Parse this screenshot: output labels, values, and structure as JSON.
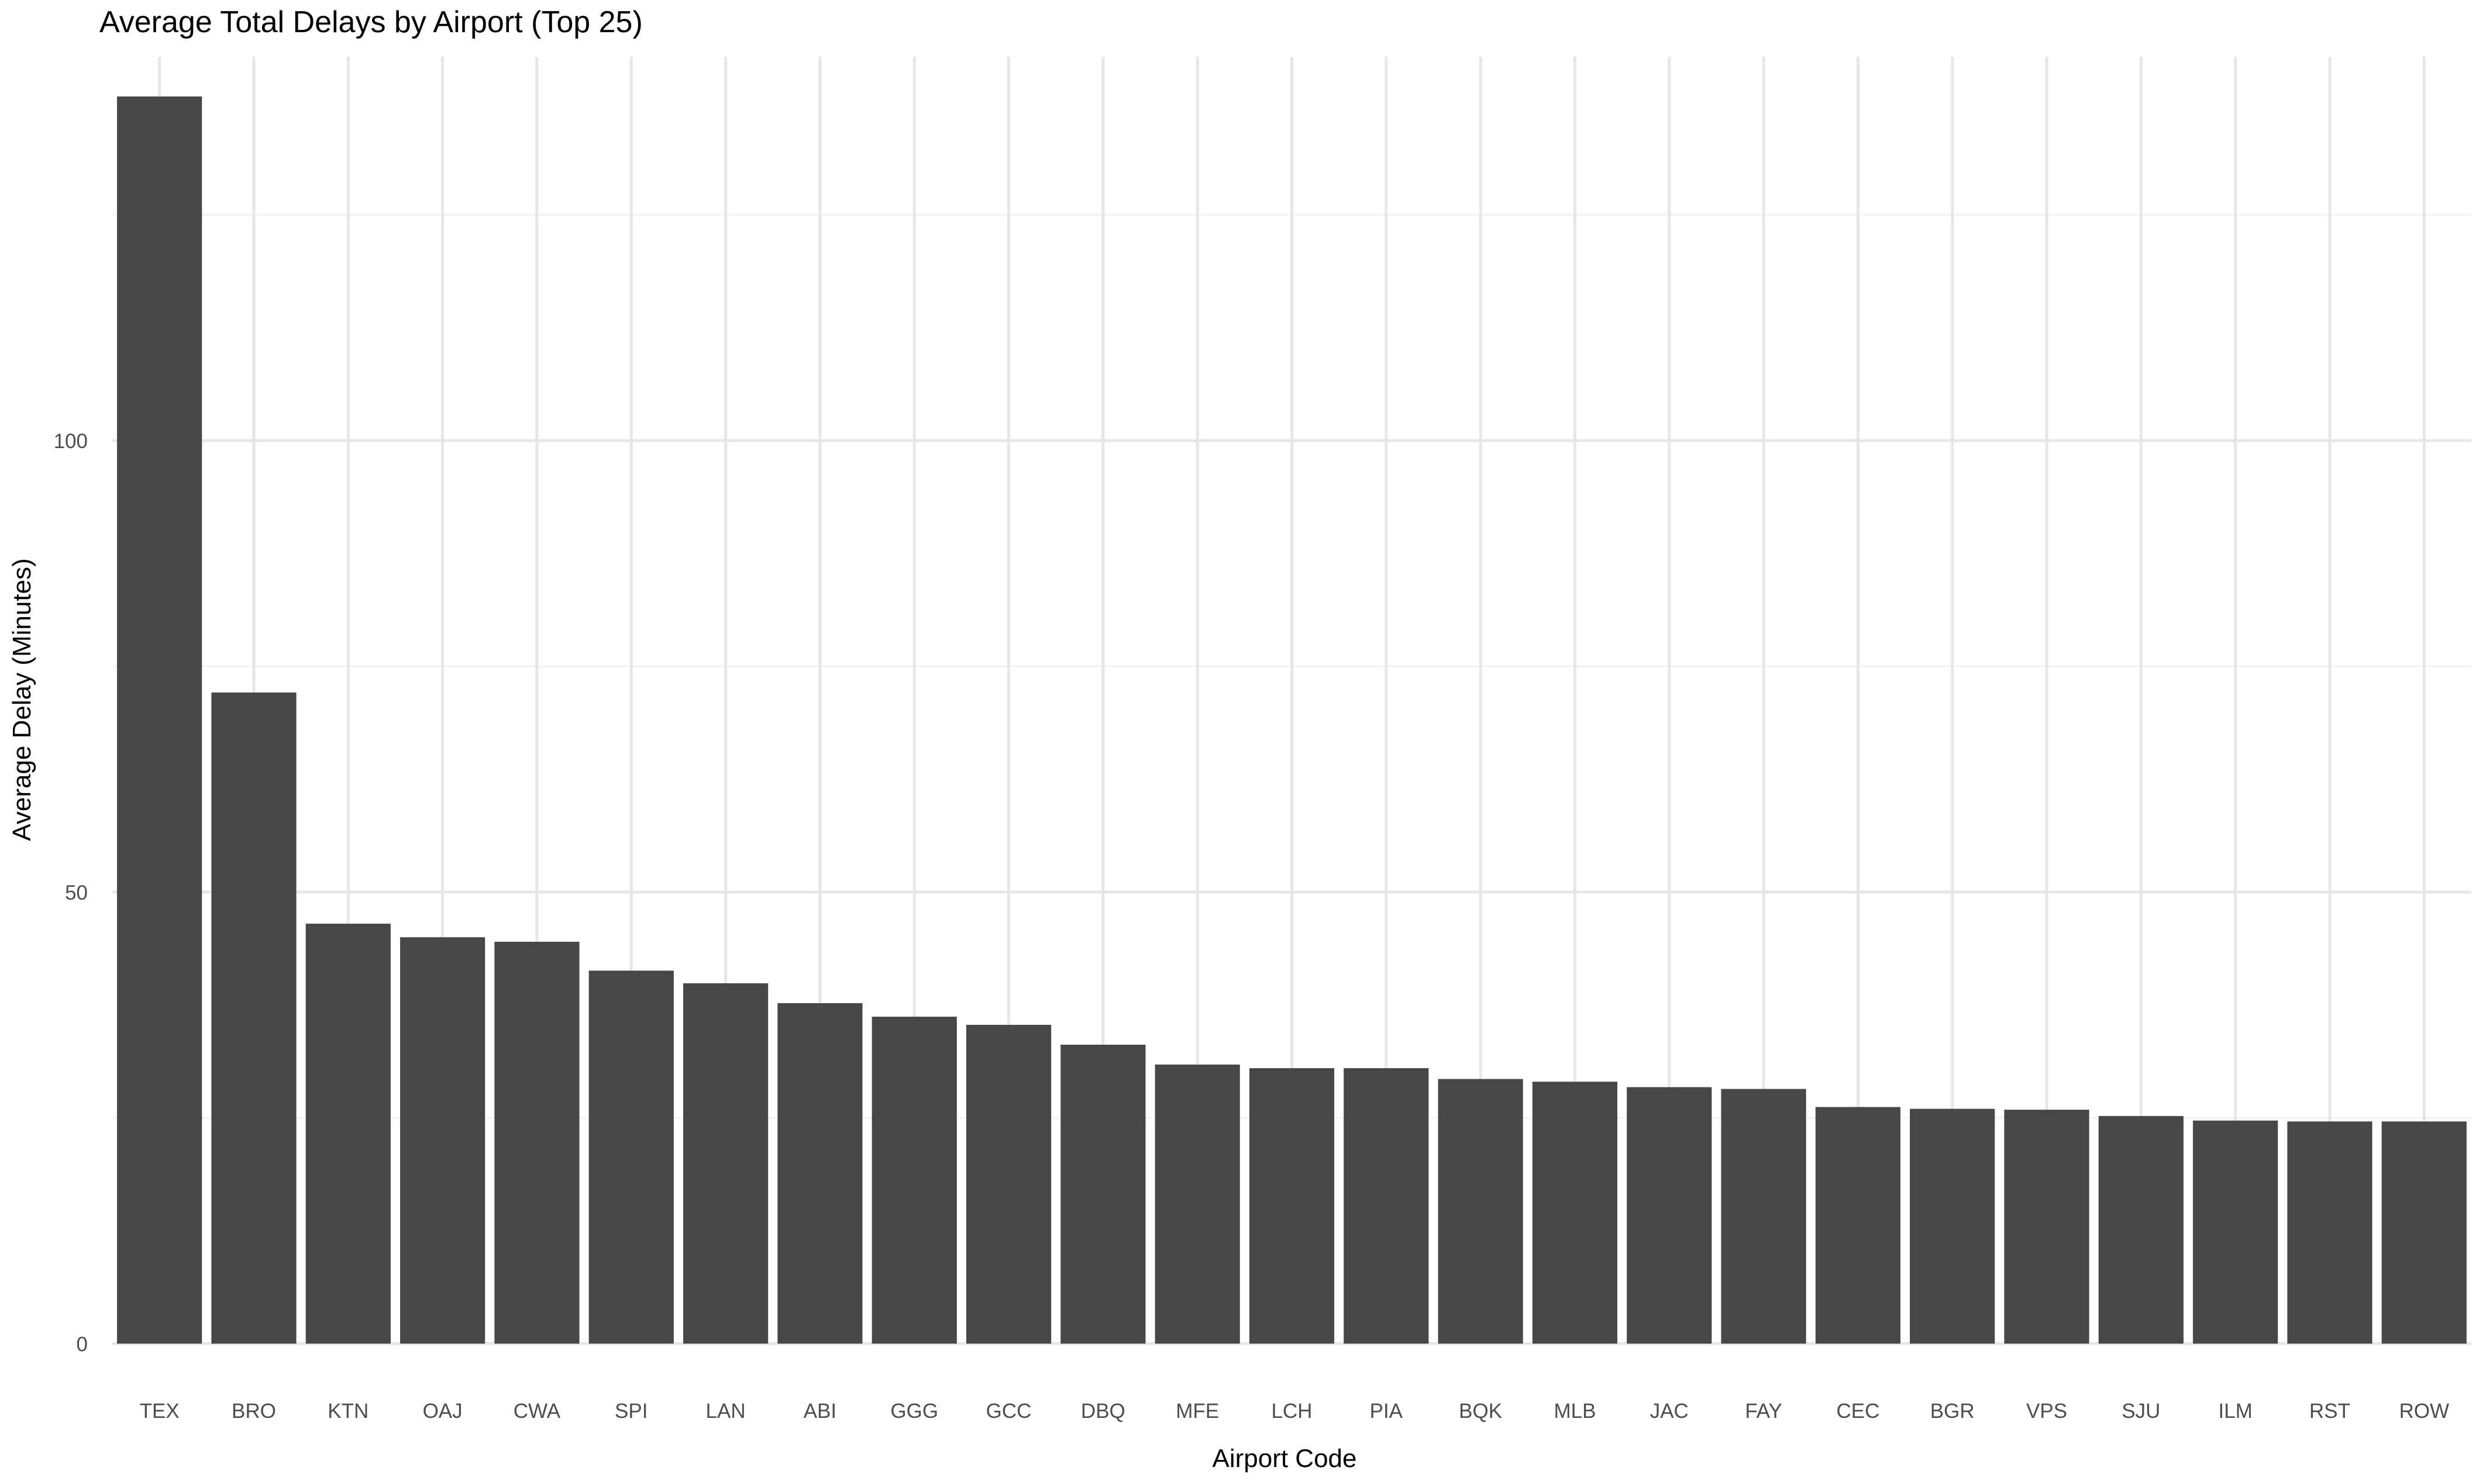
{
  "chart_data": {
    "type": "bar",
    "title": "Average Total Delays by Airport (Top 25)",
    "xlabel": "Airport Code",
    "ylabel": "Average Delay (Minutes)",
    "categories": [
      "TEX",
      "BRO",
      "KTN",
      "OAJ",
      "CWA",
      "SPI",
      "LAN",
      "ABI",
      "GGG",
      "GCC",
      "DBQ",
      "MFE",
      "LCH",
      "PIA",
      "BQK",
      "MLB",
      "JAC",
      "FAY",
      "CEC",
      "BGR",
      "VPS",
      "SJU",
      "ILM",
      "RST",
      "ROW"
    ],
    "values": [
      138.1,
      72.1,
      46.5,
      45.0,
      44.5,
      41.3,
      39.9,
      37.7,
      36.2,
      35.3,
      33.1,
      30.9,
      30.5,
      30.5,
      29.3,
      29.0,
      28.4,
      28.2,
      26.2,
      26.0,
      25.9,
      25.2,
      24.7,
      24.6,
      24.6
    ],
    "ylim": [
      0,
      142.5
    ],
    "yticks": [
      0,
      50,
      100
    ],
    "grid": true,
    "legend": "none",
    "colors": {
      "bar": "#474747",
      "grid_major": "#e6e6e6",
      "grid_minor": "#f2f2f2",
      "tick_text": "#4d4d4d",
      "axis_title": "#000000"
    }
  }
}
